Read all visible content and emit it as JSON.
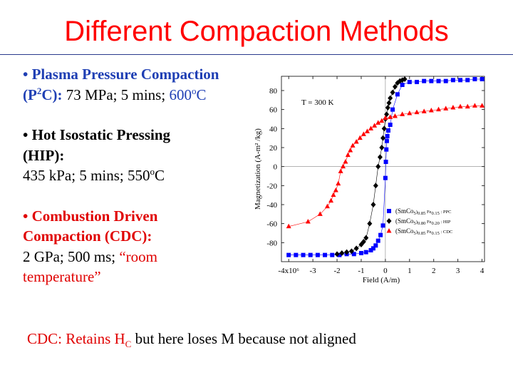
{
  "slide": {
    "title": "Different Compaction Methods",
    "bullets": [
      {
        "marker": "•",
        "label": "Plasma Pressure Compaction (P",
        "sup": "2",
        "label_end": "C):",
        "detail": " 73 MPa; 5 mins;",
        "temp": " 600",
        "temp_sup": "o",
        "temp_unit": "C"
      },
      {
        "marker": "•",
        "label_line1": "Hot Isostatic Pressing",
        "label_line2": "(HIP):",
        "detail_a": " 435 kPa; 5 mins; 550",
        "detail_sup": "o",
        "detail_unit": "C"
      },
      {
        "marker": "•",
        "label_line1": "Combustion Driven",
        "label_line2": "Compaction (CDC):",
        "detail": "2 GPa; 500 ms;",
        "quote": "“room",
        "quote_line2": "temperature”"
      }
    ],
    "note": {
      "prefix": "CDC: Retains H",
      "sub": "C",
      "suffix": " but here loses M because not aligned"
    }
  },
  "colors": {
    "title": "#ff0000",
    "blue": "#1f3fb4",
    "red": "#e00000",
    "ppc": "#0000ff",
    "hip": "#000000",
    "cdc": "#ff0000"
  },
  "chart_data": {
    "type": "scatter",
    "annotation": "T = 300 K",
    "xlabel": "Field (A/m)",
    "ylabel": "Magnetization (A-m² /kg)",
    "x_tick_labels": [
      "-4x10⁶",
      "-3",
      "-2",
      "-1",
      "0",
      "1",
      "2",
      "3",
      "4"
    ],
    "y_tick_labels": [
      "80",
      "60",
      "40",
      "20",
      "0",
      "-20",
      "-40",
      "-60",
      "-80"
    ],
    "x_ticks": [
      -4,
      -3,
      -2,
      -1,
      0,
      1,
      2,
      3,
      4
    ],
    "y_ticks": [
      80,
      60,
      40,
      20,
      0,
      -20,
      -40,
      -60,
      -80
    ],
    "xlim": [
      -4.3,
      4.1
    ],
    "ylim": [
      -100,
      95
    ],
    "x_scale": "×10⁶ A/m",
    "legend_position": "bottom-right",
    "series": [
      {
        "name_parts": {
          "pre": "(SmCo",
          "s1": "5",
          "mid": ")",
          "s2": "0.85",
          "fe": " Fe",
          "s3": "0.15",
          "post": " : PPC"
        },
        "color": "#0000ff",
        "marker": "square",
        "x": [
          -4.0,
          -3.7,
          -3.4,
          -3.1,
          -2.8,
          -2.5,
          -2.2,
          -1.9,
          -1.6,
          -1.3,
          -1.0,
          -0.8,
          -0.6,
          -0.5,
          -0.4,
          -0.3,
          -0.2,
          -0.1,
          0.0,
          0.02,
          0.04,
          0.06,
          0.08,
          0.12,
          0.2,
          0.3,
          0.5,
          0.7,
          1.0,
          1.3,
          1.6,
          1.9,
          2.2,
          2.5,
          2.8,
          3.1,
          3.4,
          3.7,
          4.0
        ],
        "y": [
          -93,
          -93,
          -93,
          -93,
          -93,
          -93,
          -93,
          -93,
          -92,
          -92,
          -91,
          -90,
          -88,
          -86,
          -83,
          -78,
          -72,
          -62,
          -12,
          5,
          18,
          27,
          32,
          38,
          44,
          60,
          76,
          86,
          89,
          89,
          90,
          90,
          90,
          90,
          91,
          91,
          91,
          92,
          92
        ]
      },
      {
        "name_parts": {
          "pre": "(SmCo",
          "s1": "5",
          "mid": ")",
          "s2": "0.80",
          "fe": " Fe",
          "s3": "0.20",
          "post": " : HIP"
        },
        "color": "#000000",
        "marker": "diamond",
        "x": [
          -2.0,
          -1.8,
          -1.6,
          -1.4,
          -1.2,
          -1.0,
          -0.9,
          -0.8,
          -0.65,
          -0.5,
          -0.4,
          -0.3,
          -0.22,
          -0.15,
          -0.1,
          -0.05,
          0.0,
          0.05,
          0.1,
          0.15,
          0.2,
          0.3,
          0.4,
          0.5,
          0.6,
          0.7,
          0.8
        ],
        "y": [
          -92,
          -91,
          -90,
          -89,
          -86,
          -82,
          -79,
          -75,
          -60,
          -40,
          -20,
          0,
          10,
          20,
          30,
          40,
          50,
          55,
          62,
          67,
          72,
          78,
          84,
          88,
          90,
          91,
          92
        ]
      },
      {
        "name_parts": {
          "pre": "(SmCo",
          "s1": "5",
          "mid": ")",
          "s2": "0.85",
          "fe": " Fe",
          "s3": "0.15",
          "post": " : CDC"
        },
        "color": "#ff0000",
        "marker": "triangle",
        "x": [
          -4.0,
          -3.2,
          -2.7,
          -2.4,
          -2.25,
          -2.15,
          -2.05,
          -1.95,
          -1.85,
          -1.75,
          -1.65,
          -1.55,
          -1.45,
          -1.35,
          -1.2,
          -1.05,
          -0.9,
          -0.75,
          -0.6,
          -0.45,
          -0.3,
          -0.15,
          0.0,
          0.2,
          0.4,
          0.7,
          1.0,
          1.3,
          1.6,
          1.9,
          2.2,
          2.5,
          2.8,
          3.1,
          3.4,
          3.7,
          4.0
        ],
        "y": [
          -63,
          -58,
          -50,
          -42,
          -36,
          -30,
          -25,
          -18,
          -5,
          0,
          5,
          12,
          17,
          22,
          26,
          30,
          34,
          37,
          40,
          43,
          46,
          48,
          51,
          52,
          53,
          55,
          56,
          57,
          58,
          59,
          60,
          61,
          62,
          63,
          63,
          64,
          64
        ]
      }
    ]
  }
}
